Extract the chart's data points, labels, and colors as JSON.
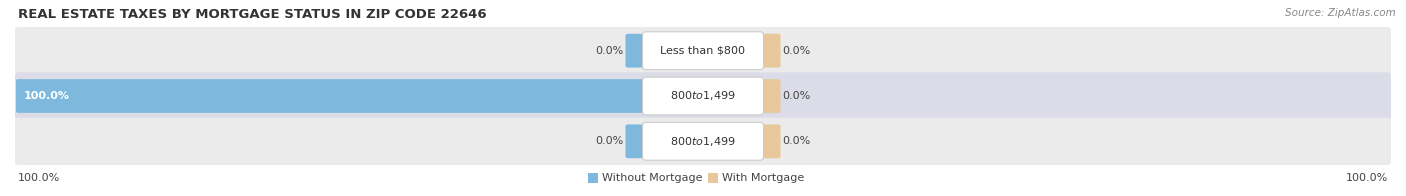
{
  "title": "REAL ESTATE TAXES BY MORTGAGE STATUS IN ZIP CODE 22646",
  "source": "Source: ZipAtlas.com",
  "rows": [
    {
      "label": "Less than $800",
      "without_mortgage": 0.0,
      "with_mortgage": 0.0
    },
    {
      "label": "$800 to $1,499",
      "without_mortgage": 100.0,
      "with_mortgage": 0.0
    },
    {
      "label": "$800 to $1,499",
      "without_mortgage": 0.0,
      "with_mortgage": 0.0
    }
  ],
  "color_without": "#7EB8DC",
  "color_with": "#E8C89A",
  "row_bg_colors": [
    "#EBEBEB",
    "#DCDCE8",
    "#EBEBEB"
  ],
  "x_left_label": "100.0%",
  "x_right_label": "100.0%",
  "legend_without": "Without Mortgage",
  "legend_with": "With Mortgage",
  "title_fontsize": 9.5,
  "source_fontsize": 7.5,
  "bar_label_fontsize": 8,
  "pct_fontsize": 8,
  "legend_fontsize": 8,
  "axis_label_fontsize": 8,
  "fig_width": 14.06,
  "fig_height": 1.96,
  "dpi": 100
}
